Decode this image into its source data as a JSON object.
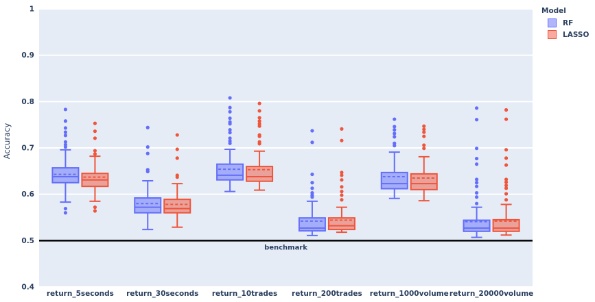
{
  "chart_data": {
    "type": "box",
    "title": "",
    "xlabel": "",
    "ylabel": "Accuracy",
    "ylim": [
      0.4,
      1.0
    ],
    "yticks": [
      1,
      0.9,
      0.8,
      0.7,
      0.6,
      0.5,
      0.4
    ],
    "ytick_labels": [
      "1",
      "0.9",
      "0.8",
      "0.7",
      "0.6",
      "0.5",
      "0.4"
    ],
    "grid": true,
    "plot_bgcolor": "#E5ECF6",
    "grid_color": "#FFFFFF",
    "text_color": "#2A3F5F",
    "legend_title": "Model",
    "legend_position": "top-right",
    "benchmark": {
      "value": 0.5,
      "label": "benchmark",
      "color": "#000000"
    },
    "categories": [
      "return_5seconds",
      "return_30seconds",
      "return_10trades",
      "return_200trades",
      "return_1000volume",
      "return_20000volume"
    ],
    "series": [
      {
        "name": "RF",
        "line_color": "#636EFA",
        "fill_color": "rgba(99,110,250,0.5)",
        "boxes": [
          {
            "whisker_low": 0.583,
            "q1": 0.625,
            "median": 0.638,
            "mean": 0.643,
            "q3": 0.657,
            "whisker_high": 0.696,
            "outliers": [
              0.783,
              0.758,
              0.743,
              0.734,
              0.727,
              0.713,
              0.707,
              0.702,
              0.569,
              0.56
            ]
          },
          {
            "whisker_low": 0.524,
            "q1": 0.56,
            "median": 0.572,
            "mean": 0.58,
            "q3": 0.592,
            "whisker_high": 0.629,
            "outliers": [
              0.744,
              0.702,
              0.688,
              0.653,
              0.649
            ]
          },
          {
            "whisker_low": 0.606,
            "q1": 0.631,
            "median": 0.641,
            "mean": 0.654,
            "q3": 0.665,
            "whisker_high": 0.697,
            "outliers": [
              0.808,
              0.787,
              0.778,
              0.764,
              0.756,
              0.752,
              0.739,
              0.733,
              0.721,
              0.715,
              0.71
            ]
          },
          {
            "whisker_low": 0.511,
            "q1": 0.521,
            "median": 0.527,
            "mean": 0.542,
            "q3": 0.549,
            "whisker_high": 0.585,
            "outliers": [
              0.737,
              0.712,
              0.643,
              0.625,
              0.613,
              0.603,
              0.598,
              0.594
            ]
          },
          {
            "whisker_low": 0.591,
            "q1": 0.612,
            "median": 0.623,
            "mean": 0.638,
            "q3": 0.647,
            "whisker_high": 0.691,
            "outliers": [
              0.762,
              0.746,
              0.739,
              0.731,
              0.724,
              0.71,
              0.705
            ]
          },
          {
            "whisker_low": 0.507,
            "q1": 0.52,
            "median": 0.527,
            "mean": 0.541,
            "q3": 0.544,
            "whisker_high": 0.572,
            "outliers": [
              0.786,
              0.761,
              0.699,
              0.677,
              0.665,
              0.632,
              0.625,
              0.617,
              0.603,
              0.594,
              0.58
            ]
          }
        ]
      },
      {
        "name": "LASSO",
        "line_color": "#EF553B",
        "fill_color": "rgba(239,85,59,0.5)",
        "boxes": [
          {
            "whisker_low": 0.585,
            "q1": 0.617,
            "median": 0.631,
            "mean": 0.637,
            "q3": 0.645,
            "whisker_high": 0.682,
            "outliers": [
              0.753,
              0.736,
              0.721,
              0.694,
              0.687,
              0.572,
              0.564
            ]
          },
          {
            "whisker_low": 0.529,
            "q1": 0.56,
            "median": 0.569,
            "mean": 0.578,
            "q3": 0.589,
            "whisker_high": 0.623,
            "outliers": [
              0.728,
              0.697,
              0.678,
              0.641,
              0.637
            ]
          },
          {
            "whisker_low": 0.609,
            "q1": 0.628,
            "median": 0.638,
            "mean": 0.653,
            "q3": 0.66,
            "whisker_high": 0.693,
            "outliers": [
              0.796,
              0.78,
              0.765,
              0.758,
              0.752,
              0.747,
              0.728,
              0.725,
              0.713,
              0.709
            ]
          },
          {
            "whisker_low": 0.518,
            "q1": 0.524,
            "median": 0.532,
            "mean": 0.544,
            "q3": 0.549,
            "whisker_high": 0.572,
            "outliers": [
              0.741,
              0.716,
              0.647,
              0.641,
              0.631,
              0.616,
              0.606,
              0.598,
              0.588
            ]
          },
          {
            "whisker_low": 0.586,
            "q1": 0.61,
            "median": 0.623,
            "mean": 0.635,
            "q3": 0.644,
            "whisker_high": 0.681,
            "outliers": [
              0.747,
              0.74,
              0.734,
              0.725,
              0.706,
              0.699
            ]
          },
          {
            "whisker_low": 0.512,
            "q1": 0.52,
            "median": 0.527,
            "mean": 0.542,
            "q3": 0.545,
            "whisker_high": 0.578,
            "outliers": [
              0.782,
              0.762,
              0.696,
              0.678,
              0.663,
              0.632,
              0.626,
              0.619,
              0.613,
              0.601,
              0.588
            ]
          }
        ]
      }
    ]
  }
}
